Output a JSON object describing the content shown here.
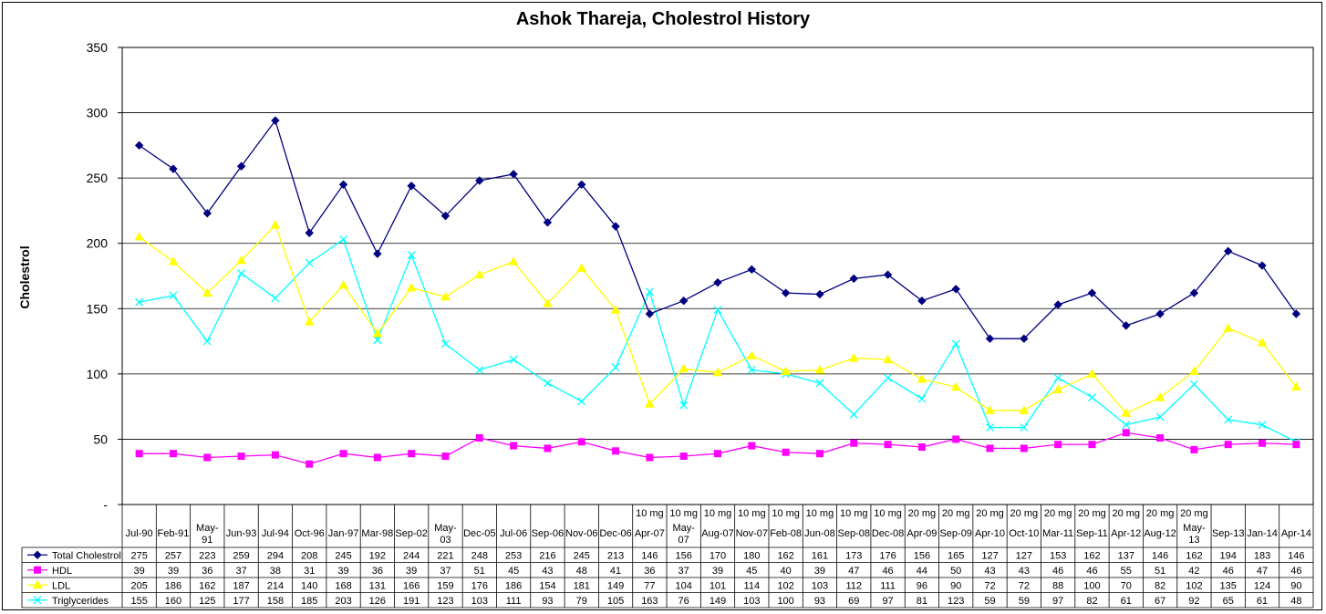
{
  "chart_data": {
    "type": "line",
    "title": "Ashok Thareja, Cholestrol History",
    "ylabel": "Cholestrol",
    "ylim": [
      0,
      350
    ],
    "y_ticks": [
      "-",
      "50",
      "100",
      "150",
      "200",
      "250",
      "300",
      "350"
    ],
    "grid": true,
    "legend_placement": "data table below plot",
    "categories": [
      {
        "pre": "",
        "label": "Jul-90"
      },
      {
        "pre": "",
        "label": "Feb-91"
      },
      {
        "pre": "",
        "label": "May-91"
      },
      {
        "pre": "",
        "label": "Jun-93"
      },
      {
        "pre": "",
        "label": "Jul-94"
      },
      {
        "pre": "",
        "label": "Oct-96"
      },
      {
        "pre": "",
        "label": "Jan-97"
      },
      {
        "pre": "",
        "label": "Mar-98"
      },
      {
        "pre": "",
        "label": "Sep-02"
      },
      {
        "pre": "",
        "label": "May-03"
      },
      {
        "pre": "",
        "label": "Dec-05"
      },
      {
        "pre": "",
        "label": "Jul-06"
      },
      {
        "pre": "",
        "label": "Sep-06"
      },
      {
        "pre": "",
        "label": "Nov-06"
      },
      {
        "pre": "",
        "label": "Dec-06"
      },
      {
        "pre": "10 mg",
        "label": "Apr-07"
      },
      {
        "pre": "10 mg",
        "label": "May-07"
      },
      {
        "pre": "10 mg",
        "label": "Aug-07"
      },
      {
        "pre": "10 mg",
        "label": "Nov-07"
      },
      {
        "pre": "10 mg",
        "label": "Feb-08"
      },
      {
        "pre": "10 mg",
        "label": "Jun-08"
      },
      {
        "pre": "10 mg",
        "label": "Sep-08"
      },
      {
        "pre": "10 mg",
        "label": "Dec-08"
      },
      {
        "pre": "20 mg",
        "label": "Apr-09"
      },
      {
        "pre": "20 mg",
        "label": "Sep-09"
      },
      {
        "pre": "20 mg",
        "label": "Apr-10"
      },
      {
        "pre": "20 mg",
        "label": "Oct-10"
      },
      {
        "pre": "20 mg",
        "label": "Mar-11"
      },
      {
        "pre": "20 mg",
        "label": "Sep-11"
      },
      {
        "pre": "20 mg",
        "label": "Apr-12"
      },
      {
        "pre": "20 mg",
        "label": "Aug-12"
      },
      {
        "pre": "20 mg",
        "label": "May-13"
      },
      {
        "pre": "",
        "label": "Sep-13"
      },
      {
        "pre": "",
        "label": "Jan-14"
      },
      {
        "pre": "",
        "label": "Apr-14"
      }
    ],
    "series": [
      {
        "name": "Total Cholestrol",
        "color": "#000080",
        "marker": "diamond",
        "values": [
          275,
          257,
          223,
          259,
          294,
          208,
          245,
          192,
          244,
          221,
          248,
          253,
          216,
          245,
          213,
          146,
          156,
          170,
          180,
          162,
          161,
          173,
          176,
          156,
          165,
          127,
          127,
          153,
          162,
          137,
          146,
          162,
          194,
          183,
          146
        ]
      },
      {
        "name": "HDL",
        "color": "#ff00ff",
        "marker": "square",
        "values": [
          39,
          39,
          36,
          37,
          38,
          31,
          39,
          36,
          39,
          37,
          51,
          45,
          43,
          48,
          41,
          36,
          37,
          39,
          45,
          40,
          39,
          47,
          46,
          44,
          50,
          43,
          43,
          46,
          46,
          55,
          51,
          42,
          46,
          47,
          46
        ]
      },
      {
        "name": "LDL",
        "color": "#ffff00",
        "marker": "triangle",
        "values": [
          205,
          186,
          162,
          187,
          214,
          140,
          168,
          131,
          166,
          159,
          176,
          186,
          154,
          181,
          149,
          77,
          104,
          101,
          114,
          102,
          103,
          112,
          111,
          96,
          90,
          72,
          72,
          88,
          100,
          70,
          82,
          102,
          135,
          124,
          90
        ]
      },
      {
        "name": "Triglycerides",
        "color": "#00ffff",
        "marker": "x",
        "values": [
          155,
          160,
          125,
          177,
          158,
          185,
          203,
          126,
          191,
          123,
          103,
          111,
          93,
          79,
          105,
          163,
          76,
          149,
          103,
          100,
          93,
          69,
          97,
          81,
          123,
          59,
          59,
          97,
          82,
          61,
          67,
          92,
          65,
          61,
          48
        ]
      }
    ]
  }
}
